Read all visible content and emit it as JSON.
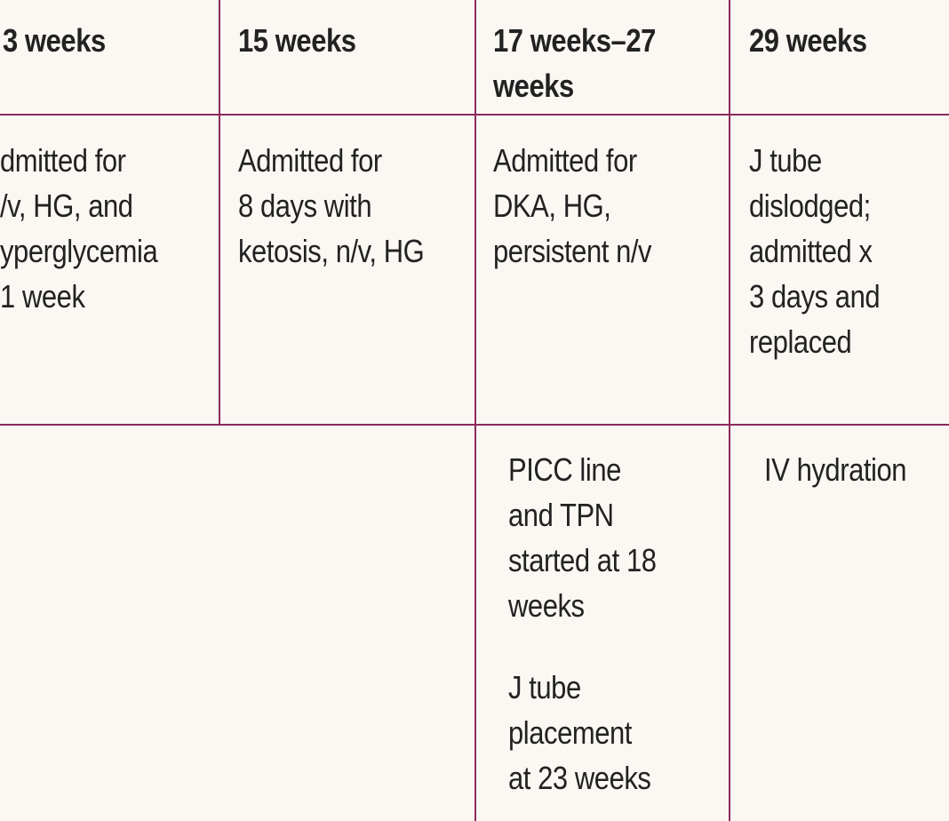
{
  "table": {
    "headers": [
      "3 weeks",
      "15 weeks",
      "17 weeks–27\nweeks",
      "29 weeks"
    ],
    "events": [
      "dmitted for\n/v, HG, and\nyperglycemia\n1 week",
      "Admitted for\n8 days with\nketosis, n/v, HG",
      "Admitted for\nDKA, HG,\npersistent n/v",
      "J tube\ndislodged;\nadmitted x\n3 days and\nreplaced"
    ],
    "interventions": {
      "col3_a": "PICC line\nand TPN\nstarted at 18\nweeks",
      "col3_b": "J tube\nplacement\nat 23 weeks",
      "col4": "IV hydration"
    }
  },
  "colors": {
    "background": "#fbf8f3",
    "rule": "#8e2a5b",
    "text": "#222222"
  }
}
